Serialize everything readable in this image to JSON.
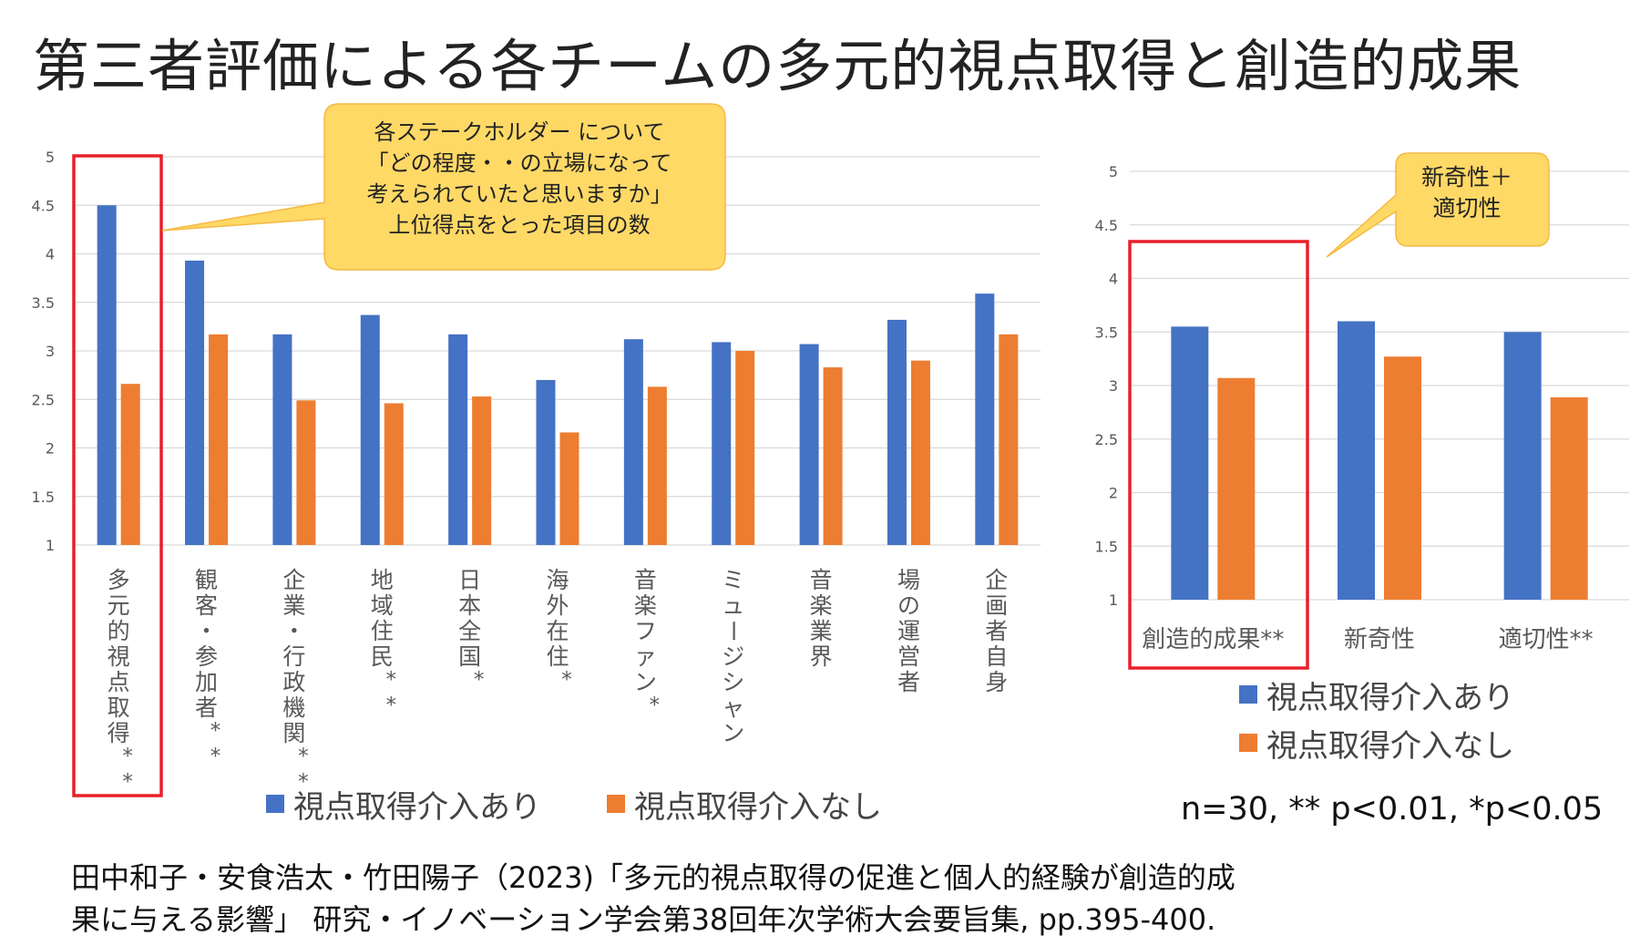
{
  "title": "第三者評価による各チームの多元的視点取得と創造的成果",
  "callout_main": [
    "各ステークホルダー について",
    "「どの程度・・の立場になって",
    "考えられていたと思いますか」",
    "上位得点をとった項目の数"
  ],
  "callout_side": [
    "新奇性＋",
    "適切性"
  ],
  "stats_note": "n=30,  ** p<0.01, *p<0.05",
  "citation": [
    "田中和子・安食浩太・竹田陽子（2023)「多元的視点取得の促進と個人的経験が創造的成",
    "果に与える影響」 研究・イノベーション学会第38回年次学術大会要旨集, pp.395-400."
  ],
  "colors": {
    "series_with": "#4472C4",
    "series_without": "#ED7D31",
    "highlight": "#E8202A",
    "callout_fill": "#FFD966",
    "grid": "#D9D9D9"
  },
  "chart_data": [
    {
      "type": "bar",
      "categories": [
        "多元的視点取得**",
        "観客・参加者**",
        "企業・行政機関**",
        "地域住民**",
        "日本全国*",
        "海外在住*",
        "音楽ファン*",
        "ミュージシャン",
        "音楽業界",
        "場の運営者",
        "企画者自身"
      ],
      "series": [
        {
          "name": "視点取得介入あり",
          "values": [
            4.5,
            3.93,
            3.17,
            3.37,
            3.17,
            2.7,
            3.12,
            3.09,
            3.07,
            3.32,
            3.59
          ]
        },
        {
          "name": "視点取得介入なし",
          "values": [
            2.66,
            3.17,
            2.49,
            2.46,
            2.53,
            2.16,
            2.63,
            3.0,
            2.83,
            2.9,
            3.17
          ]
        }
      ],
      "yticks": [
        "1",
        "1.5",
        "2",
        "2.5",
        "3",
        "3.5",
        "4",
        "4.5",
        "5"
      ],
      "ylim": [
        1,
        5
      ],
      "grid": true,
      "legend": "bottom",
      "highlight_category": 0
    },
    {
      "type": "bar",
      "categories": [
        "創造的成果**",
        "新奇性",
        "適切性**"
      ],
      "series": [
        {
          "name": "視点取得介入あり",
          "values": [
            3.55,
            3.6,
            3.5
          ]
        },
        {
          "name": "視点取得介入なし",
          "values": [
            3.07,
            3.27,
            2.89
          ]
        }
      ],
      "yticks": [
        "1",
        "1.5",
        "2",
        "2.5",
        "3",
        "3.5",
        "4",
        "4.5",
        "5"
      ],
      "ylim": [
        1,
        5
      ],
      "grid": true,
      "legend": "bottom",
      "highlight_category": 0
    }
  ]
}
